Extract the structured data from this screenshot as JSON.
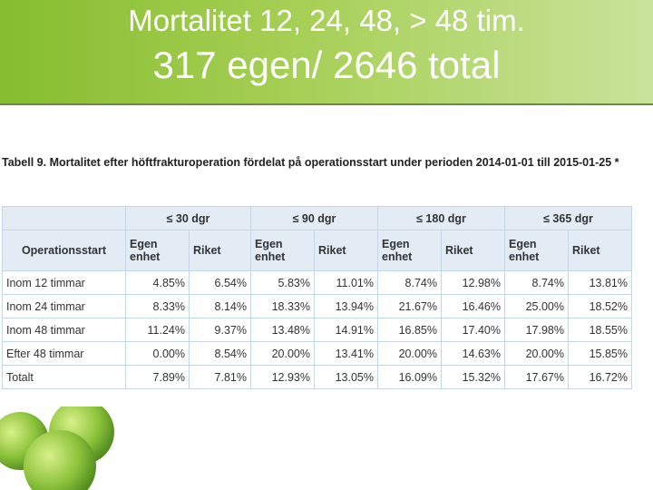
{
  "header": {
    "title": "Mortalitet 12, 24, 48, > 48 tim.",
    "subtitle": "317 egen/ 2646 total"
  },
  "table": {
    "caption": "Tabell 9. Mortalitet efter höftfrakturoperation fördelat på operationsstart under perioden 2014-01-01 till 2015-01-25 *",
    "groups": [
      "≤ 30 dgr",
      "≤ 90 dgr",
      "≤ 180 dgr",
      "≤ 365 dgr"
    ],
    "columns": [
      "Operationsstart",
      "Egen enhet",
      "Riket",
      "Egen enhet",
      "Riket",
      "Egen enhet",
      "Riket",
      "Egen enhet",
      "Riket"
    ],
    "rows": [
      [
        "Inom 12 timmar",
        "4.85%",
        "6.54%",
        "5.83%",
        "11.01%",
        "8.74%",
        "12.98%",
        "8.74%",
        "13.81%"
      ],
      [
        "Inom 24 timmar",
        "8.33%",
        "8.14%",
        "18.33%",
        "13.94%",
        "21.67%",
        "16.46%",
        "25.00%",
        "18.52%"
      ],
      [
        "Inom 48 timmar",
        "11.24%",
        "9.37%",
        "13.48%",
        "14.91%",
        "16.85%",
        "17.40%",
        "17.98%",
        "18.55%"
      ],
      [
        "Efter 48 timmar",
        "0.00%",
        "8.54%",
        "20.00%",
        "13.41%",
        "20.00%",
        "14.63%",
        "20.00%",
        "15.85%"
      ],
      [
        "Totalt",
        "7.89%",
        "7.81%",
        "12.93%",
        "13.05%",
        "16.09%",
        "15.32%",
        "17.67%",
        "16.72%"
      ]
    ]
  }
}
